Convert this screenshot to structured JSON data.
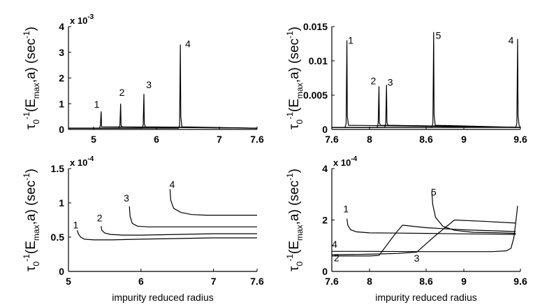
{
  "chart_data": [
    {
      "type": "line",
      "panel": "top-left",
      "exponent_label": "x 10",
      "exponent_power": "-3",
      "ylabel": {
        "tau": "τ",
        "sub": "0",
        "sup": "-1",
        "body": "(E",
        "bodysub": "max",
        "tail": ",a)  (sec",
        "unitsup": "-1",
        "close": ")"
      },
      "xlabel": "",
      "xlim": [
        4.6,
        7.6
      ],
      "ylim": [
        0,
        4
      ],
      "xticks": [
        5,
        6,
        7,
        7.6
      ],
      "xtick_labels": [
        "5",
        "6",
        "7",
        "7.6"
      ],
      "yticks": [
        0,
        1,
        2,
        3,
        4
      ],
      "ytick_labels": [
        "0",
        "1",
        "2",
        "3",
        "4"
      ],
      "series": [
        {
          "name": "1",
          "kind": "spike",
          "center": 5.12,
          "peak": 0.7,
          "base": 0.05,
          "label_x": 5.05,
          "label_y": 0.85
        },
        {
          "name": "2",
          "kind": "spike",
          "center": 5.43,
          "peak": 1.0,
          "base": 0.05,
          "label_x": 5.45,
          "label_y": 1.3
        },
        {
          "name": "3",
          "kind": "spike",
          "center": 5.8,
          "peak": 1.38,
          "base": 0.05,
          "label_x": 5.88,
          "label_y": 1.6
        },
        {
          "name": "4",
          "kind": "spike",
          "center": 6.38,
          "peak": 3.3,
          "base": 0.05,
          "label_x": 6.5,
          "label_y": 3.2
        }
      ]
    },
    {
      "type": "line",
      "panel": "top-right",
      "exponent_label": "",
      "exponent_power": "",
      "ylabel": {
        "tau": "τ",
        "sub": "0",
        "sup": "-1",
        "body": "(E",
        "bodysub": "max",
        "tail": ",a)  (sec",
        "unitsup": "-1",
        "close": ")"
      },
      "xlabel": "",
      "xlim": [
        7.6,
        9.6
      ],
      "ylim": [
        0,
        0.015
      ],
      "xticks": [
        7.6,
        8,
        8.6,
        9,
        9.6
      ],
      "xtick_labels": [
        "7.6",
        "8",
        "8.6",
        "9",
        "9.6"
      ],
      "yticks": [
        0,
        0.005,
        0.01,
        0.015
      ],
      "ytick_labels": [
        "0",
        "0.005",
        "0.01",
        "0.015"
      ],
      "series": [
        {
          "name": "1",
          "kind": "spike",
          "center": 7.76,
          "peak": 0.013,
          "base": 0.0003,
          "label_x": 7.8,
          "label_y": 0.0125
        },
        {
          "name": "2",
          "kind": "spike",
          "center": 8.1,
          "peak": 0.0063,
          "base": 0.0003,
          "label_x": 8.04,
          "label_y": 0.0066
        },
        {
          "name": "3",
          "kind": "spike",
          "center": 8.18,
          "peak": 0.0065,
          "base": 0.0003,
          "label_x": 8.22,
          "label_y": 0.0064
        },
        {
          "name": "5",
          "kind": "spike",
          "center": 8.68,
          "peak": 0.0142,
          "base": 0.0003,
          "label_x": 8.73,
          "label_y": 0.0132
        },
        {
          "name": "4",
          "kind": "spike",
          "center": 9.57,
          "peak": 0.0132,
          "base": 0.0003,
          "label_x": 9.5,
          "label_y": 0.0125
        }
      ]
    },
    {
      "type": "line",
      "panel": "bottom-left",
      "exponent_label": "x 10",
      "exponent_power": "-4",
      "ylabel": {
        "tau": "τ",
        "sub": "0",
        "sup": "-1",
        "body": "(E",
        "bodysub": "max",
        "tail": ",a)  (sec",
        "unitsup": "-1",
        "close": ")"
      },
      "xlabel": "impurity reduced radius",
      "xlim": [
        5,
        7.6
      ],
      "ylim": [
        0,
        1.5
      ],
      "xticks": [
        5,
        6,
        7,
        7.6
      ],
      "xtick_labels": [
        "5",
        "6",
        "7",
        "7.6"
      ],
      "yticks": [
        0,
        0.5,
        1,
        1.5
      ],
      "ytick_labels": [
        "0",
        "0.5",
        "1",
        "1.5"
      ],
      "series": [
        {
          "name": "1",
          "kind": "decay",
          "x": [
            5.12,
            5.14,
            5.17,
            5.22,
            5.35,
            5.6,
            6.0,
            6.5,
            7.0,
            7.3,
            7.6
          ],
          "y": [
            0.6,
            0.54,
            0.5,
            0.47,
            0.46,
            0.46,
            0.47,
            0.48,
            0.49,
            0.49,
            0.49
          ],
          "label_x": 5.1,
          "label_y": 0.63
        },
        {
          "name": "2",
          "kind": "decay",
          "x": [
            5.45,
            5.46,
            5.5,
            5.58,
            5.75,
            6.0,
            6.5,
            7.0,
            7.6
          ],
          "y": [
            0.66,
            0.6,
            0.56,
            0.54,
            0.53,
            0.53,
            0.54,
            0.55,
            0.55
          ],
          "label_x": 5.43,
          "label_y": 0.73
        },
        {
          "name": "3",
          "kind": "decay",
          "x": [
            5.84,
            5.85,
            5.88,
            5.95,
            6.1,
            6.4,
            6.8,
            7.2,
            7.6
          ],
          "y": [
            0.95,
            0.8,
            0.7,
            0.66,
            0.65,
            0.65,
            0.65,
            0.65,
            0.65
          ],
          "label_x": 5.8,
          "label_y": 1.02
        },
        {
          "name": "4",
          "kind": "decay",
          "x": [
            6.4,
            6.41,
            6.45,
            6.55,
            6.7,
            6.9,
            7.2,
            7.6
          ],
          "y": [
            1.2,
            1.04,
            0.92,
            0.86,
            0.83,
            0.82,
            0.82,
            0.82
          ],
          "label_x": 6.43,
          "label_y": 1.22
        }
      ]
    },
    {
      "type": "line",
      "panel": "bottom-right",
      "exponent_label": "x 10",
      "exponent_power": "-4",
      "ylabel": {
        "tau": "τ",
        "sub": "0",
        "sup": "-1",
        "body": "(E",
        "bodysub": "max",
        "tail": ",a)  (sec",
        "unitsup": "-1",
        "close": ")"
      },
      "xlabel": "impurity reduced radius",
      "xlim": [
        7.6,
        9.6
      ],
      "ylim": [
        0,
        4
      ],
      "xticks": [
        7.6,
        8,
        8.6,
        9,
        9.6
      ],
      "xtick_labels": [
        "7.6",
        "8",
        "8.6",
        "9",
        "9.6"
      ],
      "yticks": [
        0,
        2,
        4
      ],
      "ytick_labels": [
        "0",
        "2",
        "4"
      ],
      "series": [
        {
          "name": "1",
          "kind": "decay",
          "x": [
            7.76,
            7.77,
            7.8,
            7.86,
            8.0,
            8.3,
            8.6,
            9.0,
            9.3,
            9.55
          ],
          "y": [
            2.05,
            1.8,
            1.62,
            1.54,
            1.5,
            1.49,
            1.48,
            1.46,
            1.45,
            1.44
          ],
          "label_x": 7.75,
          "label_y": 2.3
        },
        {
          "name": "4",
          "kind": "flat",
          "x": [
            7.6,
            8.0,
            8.5,
            9.0,
            9.3,
            9.45,
            9.5,
            9.53,
            9.55,
            9.57
          ],
          "y": [
            0.78,
            0.78,
            0.77,
            0.77,
            0.77,
            0.8,
            0.9,
            1.3,
            1.9,
            2.55
          ],
          "label_x": 7.63,
          "label_y": 0.92
        },
        {
          "name": "2",
          "kind": "ramp",
          "x": [
            7.6,
            8.0,
            8.1,
            8.28,
            8.35,
            8.6,
            9.0,
            9.55
          ],
          "y": [
            0.6,
            0.6,
            0.62,
            1.5,
            1.8,
            1.7,
            1.62,
            1.55
          ],
          "label_x": 7.65,
          "label_y": 0.4
        },
        {
          "name": "3",
          "kind": "ramp",
          "x": [
            7.6,
            8.0,
            8.3,
            8.5,
            8.7,
            8.9,
            9.2,
            9.55
          ],
          "y": [
            0.65,
            0.67,
            0.7,
            0.75,
            1.4,
            2.0,
            1.95,
            1.88
          ],
          "label_x": 8.5,
          "label_y": 0.38
        },
        {
          "name": "5",
          "kind": "decay",
          "x": [
            8.66,
            8.67,
            8.7,
            8.78,
            8.9,
            9.1,
            9.4,
            9.55
          ],
          "y": [
            3.1,
            2.6,
            2.1,
            1.75,
            1.6,
            1.52,
            1.5,
            1.48
          ],
          "label_x": 8.68,
          "label_y": 2.95
        }
      ]
    }
  ]
}
